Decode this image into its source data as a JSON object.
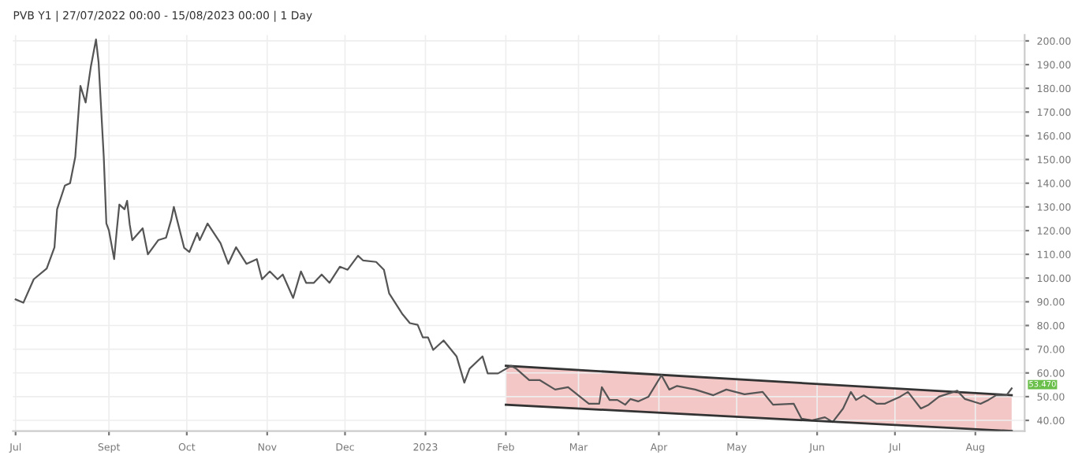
{
  "chart_data": {
    "type": "line",
    "title": "PVB Y1 | 27/07/2022 00:00 - 15/08/2023 00:00 | 1 Day",
    "xlim": [
      "2022-07-26",
      "2023-08-20"
    ],
    "ylim": [
      35.5,
      202.5
    ],
    "yticks": [
      {
        "value": 40,
        "label": "40.00"
      },
      {
        "value": 50,
        "label": "50.00"
      },
      {
        "value": 60,
        "label": "60.00"
      },
      {
        "value": 70,
        "label": "70.00"
      },
      {
        "value": 80,
        "label": "80.00"
      },
      {
        "value": 90,
        "label": "90.00"
      },
      {
        "value": 100,
        "label": "100.00"
      },
      {
        "value": 110,
        "label": "110.00"
      },
      {
        "value": 120,
        "label": "120.00"
      },
      {
        "value": 130,
        "label": "130.00"
      },
      {
        "value": 140,
        "label": "140.00"
      },
      {
        "value": 150,
        "label": "150.00"
      },
      {
        "value": 160,
        "label": "160.00"
      },
      {
        "value": 170,
        "label": "170.00"
      },
      {
        "value": 180,
        "label": "180.00"
      },
      {
        "value": 190,
        "label": "190.00"
      },
      {
        "value": 200,
        "label": "200.00"
      }
    ],
    "xticks": [
      {
        "value": "2022-07-27",
        "label": "Jul"
      },
      {
        "value": "2022-09-01",
        "label": "Sept"
      },
      {
        "value": "2022-10-01",
        "label": "Oct"
      },
      {
        "value": "2022-11-01",
        "label": "Nov"
      },
      {
        "value": "2022-12-01",
        "label": "Dec"
      },
      {
        "value": "2023-01-01",
        "label": "2023"
      },
      {
        "value": "2023-02-01",
        "label": "Feb"
      },
      {
        "value": "2023-03-01",
        "label": "Mar"
      },
      {
        "value": "2023-04-01",
        "label": "Apr"
      },
      {
        "value": "2023-05-01",
        "label": "May"
      },
      {
        "value": "2023-06-01",
        "label": "Jun"
      },
      {
        "value": "2023-07-01",
        "label": "Jul"
      },
      {
        "value": "2023-08-01",
        "label": "Aug"
      }
    ],
    "grid": true,
    "marker": "none",
    "line_style": "solid",
    "annotations": [
      {
        "text": "53.470",
        "x": "2023-08-15",
        "y": 53.47
      }
    ],
    "series": [
      {
        "color": "#555555",
        "x": [
          "2022-07-27",
          "2022-07-30",
          "2022-08-03",
          "2022-08-08",
          "2022-08-11",
          "2022-08-12",
          "2022-08-15",
          "2022-08-17",
          "2022-08-19",
          "2022-08-21",
          "2022-08-23",
          "2022-08-25",
          "2022-08-27",
          "2022-08-28",
          "2022-08-30",
          "2022-08-31",
          "2022-09-01",
          "2022-09-03",
          "2022-09-04",
          "2022-09-05",
          "2022-09-07",
          "2022-09-08",
          "2022-09-09",
          "2022-09-10",
          "2022-09-14",
          "2022-09-16",
          "2022-09-20",
          "2022-09-23",
          "2022-09-25",
          "2022-09-26",
          "2022-09-30",
          "2022-10-02",
          "2022-10-05",
          "2022-10-06",
          "2022-10-09",
          "2022-10-14",
          "2022-10-17",
          "2022-10-20",
          "2022-10-24",
          "2022-10-28",
          "2022-10-30",
          "2022-11-02",
          "2022-11-05",
          "2022-11-07",
          "2022-11-11",
          "2022-11-14",
          "2022-11-16",
          "2022-11-19",
          "2022-11-22",
          "2022-11-25",
          "2022-11-29",
          "2022-12-02",
          "2022-12-06",
          "2022-12-08",
          "2022-12-13",
          "2022-12-16",
          "2022-12-18",
          "2022-12-23",
          "2022-12-26",
          "2022-12-29",
          "2022-12-31",
          "2023-01-02",
          "2023-01-04",
          "2023-01-08",
          "2023-01-13",
          "2023-01-16",
          "2023-01-18",
          "2023-01-23",
          "2023-01-25",
          "2023-01-29",
          "2023-02-03",
          "2023-02-05",
          "2023-02-10",
          "2023-02-14",
          "2023-02-20",
          "2023-02-25",
          "2023-03-05",
          "2023-03-09",
          "2023-03-10",
          "2023-03-13",
          "2023-03-16",
          "2023-03-19",
          "2023-03-21",
          "2023-03-24",
          "2023-03-28",
          "2023-04-02",
          "2023-04-05",
          "2023-04-08",
          "2023-04-15",
          "2023-04-22",
          "2023-04-27",
          "2023-05-04",
          "2023-05-11",
          "2023-05-15",
          "2023-05-23",
          "2023-05-26",
          "2023-05-30",
          "2023-06-04",
          "2023-06-07",
          "2023-06-11",
          "2023-06-14",
          "2023-06-16",
          "2023-06-19",
          "2023-06-24",
          "2023-06-27",
          "2023-07-03",
          "2023-07-06",
          "2023-07-11",
          "2023-07-14",
          "2023-07-18",
          "2023-07-25",
          "2023-07-28",
          "2023-08-03",
          "2023-08-06",
          "2023-08-09",
          "2023-08-13",
          "2023-08-15"
        ],
        "values": [
          91,
          89.6,
          99.5,
          104,
          113,
          129,
          139,
          140,
          151,
          181,
          174,
          189,
          200.6,
          191,
          151,
          123,
          120,
          108,
          120,
          131,
          129,
          132.6,
          122.6,
          116,
          121,
          110,
          116,
          117,
          124.6,
          130,
          112.7,
          111,
          119,
          116,
          123,
          114.7,
          106,
          113,
          106,
          108,
          99.5,
          102.8,
          99.5,
          101.5,
          91.6,
          102.8,
          98,
          98,
          101.5,
          98,
          104.8,
          103.5,
          109.4,
          107.4,
          106.8,
          103.5,
          93.6,
          85,
          81,
          80.3,
          75,
          75,
          69.7,
          73.7,
          67,
          55.9,
          61.8,
          67,
          59.8,
          59.8,
          63,
          61.8,
          57,
          57,
          53,
          54,
          47,
          47,
          54,
          48.6,
          48.6,
          46.6,
          49,
          48,
          50,
          59,
          53,
          54.5,
          53,
          50.6,
          53,
          51,
          52,
          46.6,
          47,
          40.7,
          40,
          41.3,
          39.3,
          45,
          52,
          48.6,
          50.6,
          47,
          47,
          50,
          52,
          45,
          46.6,
          50,
          52.5,
          49,
          47,
          48.6,
          50.6,
          50.6,
          53.5
        ]
      },
      {
        "type": "line",
        "color": "#333333",
        "x": [
          "2023-02-01",
          "2023-08-15"
        ],
        "values": [
          46.6,
          35.5
        ]
      },
      {
        "type": "area",
        "color": "#f4c7c7",
        "x": [
          "2023-02-01",
          "2023-08-15"
        ],
        "values": [
          63,
          50.6
        ]
      }
    ]
  }
}
